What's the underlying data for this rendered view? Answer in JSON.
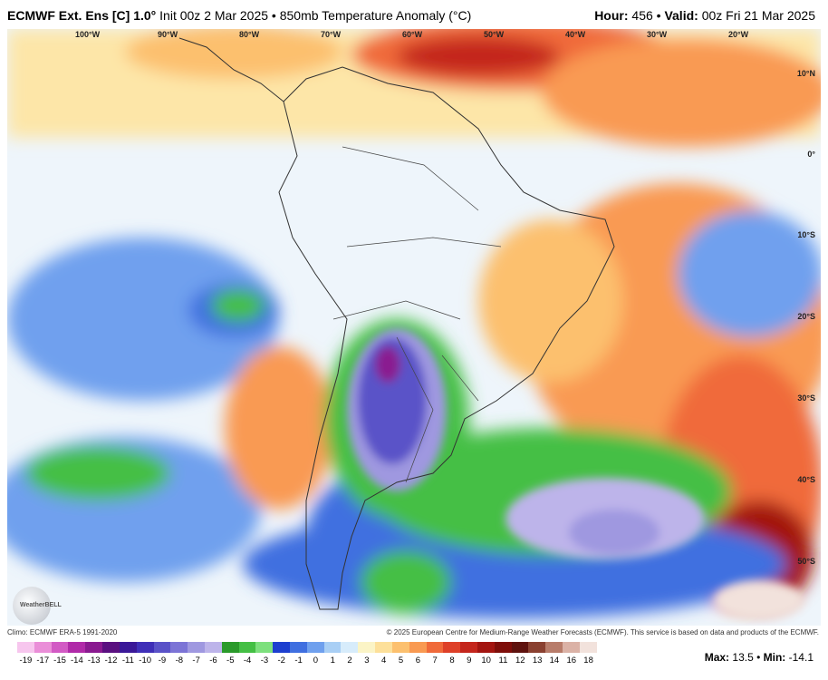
{
  "header": {
    "model": "ECMWF Ext. Ens [C] 1.0°",
    "init": "Init 00z 2 Mar 2025",
    "bullet": "•",
    "field": "850mb Temperature Anomaly (°C)",
    "hour_label": "Hour:",
    "hour_value": "456",
    "valid_label": "Valid:",
    "valid_value": "00z Fri 21 Mar 2025"
  },
  "map": {
    "lon_labels": [
      "100°W",
      "90°W",
      "80°W",
      "70°W",
      "60°W",
      "50°W",
      "40°W",
      "30°W",
      "20°W"
    ],
    "lat_labels": [
      "10°N",
      "0°",
      "10°S",
      "20°S",
      "30°S",
      "40°S",
      "50°S"
    ],
    "logo_text": "WeatherBELL"
  },
  "footer": {
    "climo": "Climo: ECMWF ERA-5 1991-2020",
    "copyright": "© 2025 European Centre for Medium-Range Weather Forecasts (ECMWF). This service is based on data and products of the ECMWF."
  },
  "colorbar": {
    "ticks": [
      "-19",
      "-17",
      "-15",
      "-14",
      "-13",
      "-12",
      "-11",
      "-10",
      "-9",
      "-8",
      "-7",
      "-6",
      "-5",
      "-4",
      "-3",
      "-2",
      "-1",
      "0",
      "1",
      "2",
      "3",
      "4",
      "5",
      "6",
      "7",
      "8",
      "9",
      "10",
      "11",
      "12",
      "13",
      "14",
      "16",
      "18"
    ],
    "colors": [
      "#f7c6ee",
      "#ea8ed8",
      "#d25ac4",
      "#b02aa8",
      "#8a1a90",
      "#5a1080",
      "#3a1898",
      "#3f2fb8",
      "#5a52c8",
      "#7c74d6",
      "#9f98e0",
      "#bdb4ea",
      "#2a9a2a",
      "#44bf44",
      "#7de07d",
      "#1d3fcf",
      "#3f6fe0",
      "#6fa0ee",
      "#a9cff5",
      "#d7ecfb",
      "#fbf4c6",
      "#fde09a",
      "#fcc06e",
      "#f99a52",
      "#f06a3a",
      "#de4028",
      "#c4261c",
      "#a31510",
      "#7e0e0a",
      "#5e120e",
      "#8a4030",
      "#b87c6a",
      "#dbb2a6",
      "#f2e2dc"
    ]
  },
  "stats": {
    "max_label": "Max:",
    "max_value": "13.5",
    "min_label": "Min:",
    "min_value": "-14.1"
  }
}
